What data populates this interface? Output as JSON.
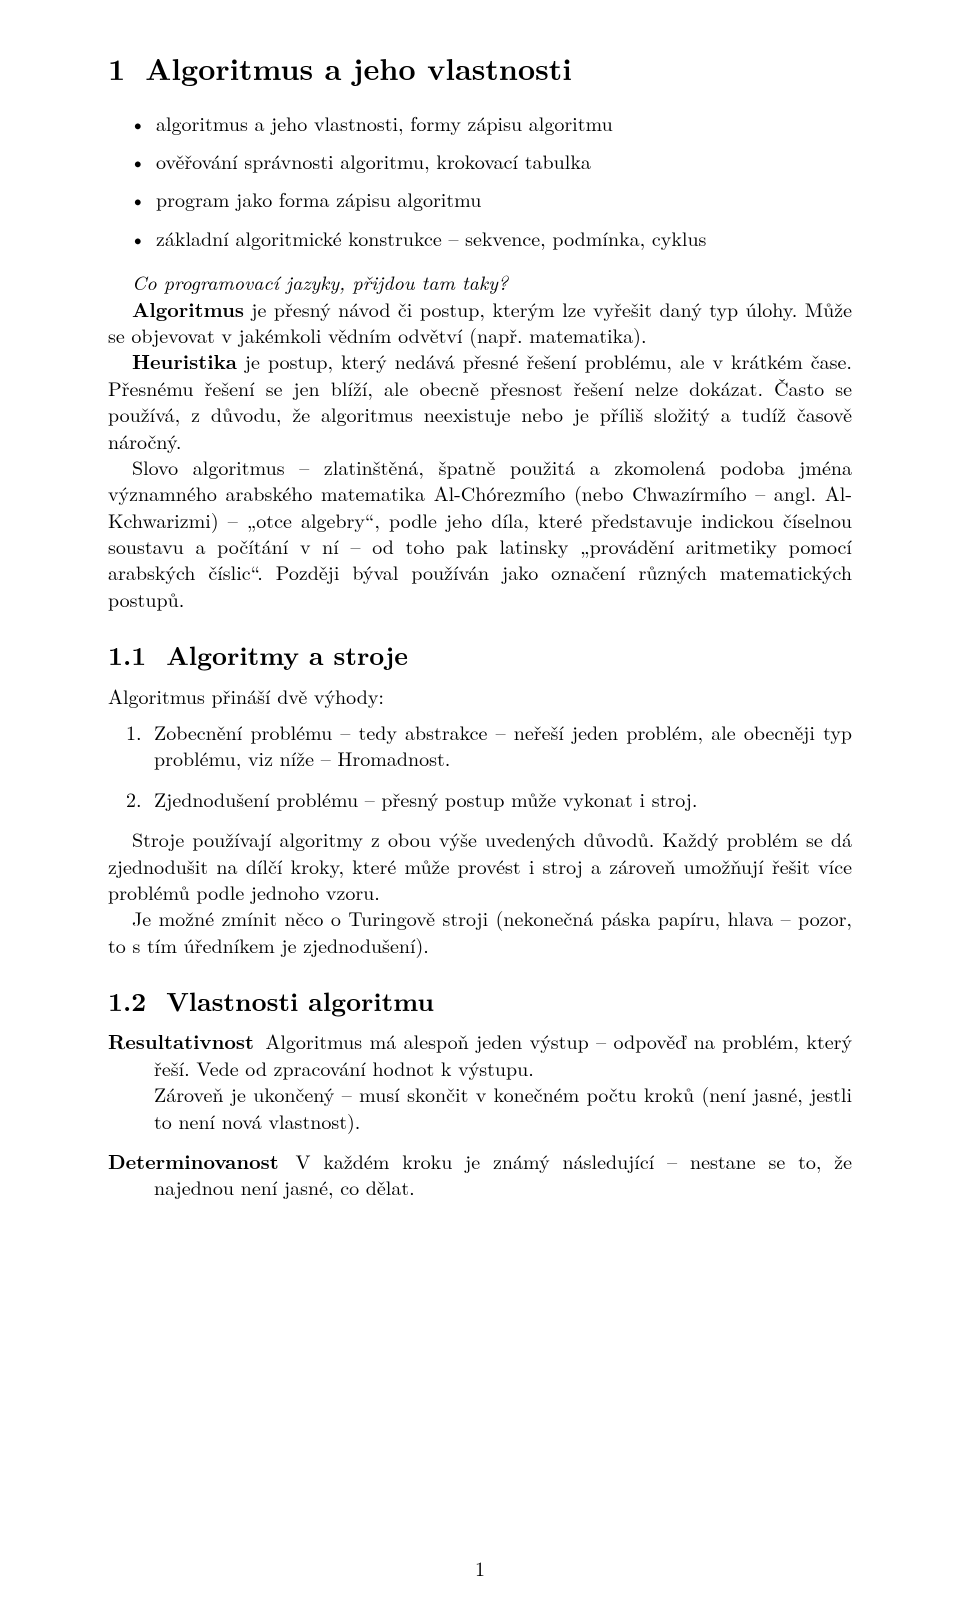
{
  "section": {
    "number": "1",
    "title": "Algoritmus a jeho vlastnosti"
  },
  "bullets": [
    "algoritmus a jeho vlastnosti, formy zápisu algoritmu",
    "ověřování správnosti algoritmu, krokovací tabulka",
    "program jako forma zápisu algoritmu",
    "základní algoritmické konstrukce – sekvence, podmínka, cyklus"
  ],
  "intro": {
    "q": "Co programovací jazyky, přijdou tam taky?",
    "alg_label": "Algoritmus",
    "alg_text": " je přesný návod či postup, kterým lze vyřešit daný typ úlohy. Může se objevovat v jakémkoli vědním odvětví (např. matematika).",
    "heur_label": "Heuristika",
    "heur_text": " je postup, který nedává přesné řešení problému, ale v krátkém čase. Přesnému řešení se jen blíží, ale obecně přesnost řešení nelze dokázat. Často se používá, z důvodu, že algoritmus neexistuje nebo je příliš složitý a tudíž časově náročný.",
    "etym": "Slovo algoritmus – zlatinštěná, špatně použitá a zkomolená podoba jména významného arabského matematika Al-Chórezmího (nebo Chwazírmího – angl. Al-Kchwarizmi) – „otce algebry“, podle jeho díla, které představuje indickou číselnou soustavu a počítání v ní – od toho pak latinsky „provádění aritmetiky pomocí arabských číslic“. Později býval používán jako označení různých matematických postupů."
  },
  "sub1": {
    "number": "1.1",
    "title": "Algoritmy a stroje",
    "lead": "Algoritmus přináší dvě výhody:",
    "items": [
      "Zobecnění problému – tedy abstrakce – neřeší jeden problém, ale obecněji typ problému, viz níže – Hromadnost.",
      "Zjednodušení problému – přesný postup může vykonat i stroj."
    ],
    "p1": "Stroje používají algoritmy z obou výše uvedených důvodů. Každý problém se dá zjednodušit na dílčí kroky, které může provést i stroj a zároveň umožňují řešit více problémů podle jednoho vzoru.",
    "p2": "Je možné zmínit něco o Turingově stroji (nekonečná páska papíru, hlava – pozor, to s tím úředníkem je zjednodušení)."
  },
  "sub2": {
    "number": "1.2",
    "title": "Vlastnosti algoritmu",
    "items": [
      {
        "term": "Resultativnost",
        "body": " Algoritmus má alespoň jeden výstup – odpověď na problém, který řeší. Vede od zpracování hodnot k výstupu.",
        "cont": "Zároveň je ukončený – musí skončit v konečném počtu kroků (není jasné, jestli to není nová vlastnost)."
      },
      {
        "term": "Determinovanost",
        "body": " V každém kroku je známý následující – nestane se to, že najednou není jasné, co dělat.",
        "cont": ""
      }
    ]
  },
  "page_number": "1"
}
